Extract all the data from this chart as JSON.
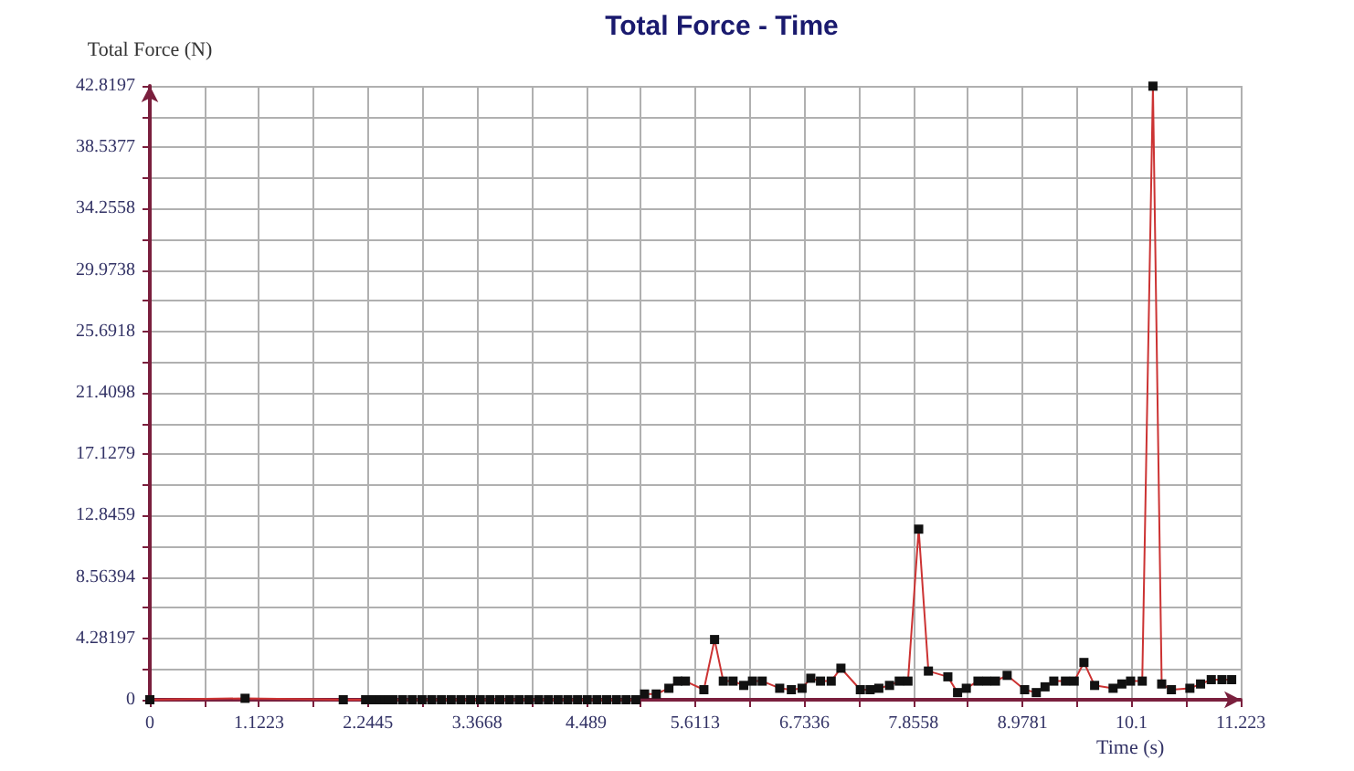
{
  "chart_data": {
    "type": "line",
    "title": "Total Force - Time",
    "xlabel": "Time (s)",
    "ylabel": "Total Force (N)",
    "x": [
      0,
      0.98,
      1.99,
      2.22,
      2.27,
      2.32,
      2.37,
      2.42,
      2.46,
      2.5,
      2.6,
      2.7,
      2.8,
      2.9,
      3.0,
      3.1,
      3.2,
      3.3,
      3.4,
      3.5,
      3.6,
      3.7,
      3.8,
      3.9,
      4.0,
      4.1,
      4.2,
      4.3,
      4.4,
      4.5,
      4.6,
      4.7,
      4.8,
      4.9,
      5.0,
      5.09,
      5.21,
      5.34,
      5.43,
      5.51,
      5.7,
      5.81,
      5.9,
      6.0,
      6.11,
      6.2,
      6.3,
      6.48,
      6.6,
      6.71,
      6.8,
      6.9,
      7.01,
      7.11,
      7.31,
      7.41,
      7.5,
      7.61,
      7.71,
      7.8,
      7.91,
      8.01,
      8.21,
      8.31,
      8.4,
      8.52,
      8.61,
      8.7,
      8.82,
      9.0,
      9.12,
      9.21,
      9.3,
      9.42,
      9.51,
      9.61,
      9.72,
      9.91,
      10.0,
      10.09,
      10.21,
      10.32,
      10.41,
      10.51,
      10.7,
      10.81,
      10.92,
      11.03,
      11.13
    ],
    "series": [
      {
        "color": "#cc3333",
        "values": [
          0,
          0.1,
          0,
          0,
          0,
          0,
          0,
          0,
          0,
          0,
          0,
          0,
          0,
          0,
          0,
          0,
          0,
          0,
          0,
          0,
          0,
          0,
          0,
          0,
          0,
          0,
          0,
          0,
          0,
          0,
          0,
          0,
          0,
          0,
          0,
          0.4,
          0.4,
          0.8,
          1.3,
          1.3,
          0.7,
          4.2,
          1.3,
          1.3,
          1.0,
          1.3,
          1.3,
          0.8,
          0.7,
          0.8,
          1.5,
          1.3,
          1.3,
          2.2,
          0.7,
          0.7,
          0.8,
          1.0,
          1.3,
          1.3,
          11.9,
          2.0,
          1.6,
          0.5,
          0.8,
          1.3,
          1.3,
          1.3,
          1.7,
          0.7,
          0.5,
          0.9,
          1.3,
          1.3,
          1.3,
          2.6,
          1.0,
          0.8,
          1.1,
          1.3,
          1.3,
          42.8,
          1.1,
          0.7,
          0.8,
          1.1,
          1.4,
          1.4,
          1.4
        ]
      }
    ],
    "xlim": [
      0,
      11.223
    ],
    "xticks": [
      0,
      {
        "value": 0.56115,
        "label": null
      },
      1.1223,
      {
        "value": 1.6834,
        "label": null
      },
      2.2445,
      {
        "value": 2.80565,
        "label": null
      },
      3.3668,
      {
        "value": 3.9279,
        "label": null
      },
      4.489,
      {
        "value": 5.05015,
        "label": null
      },
      5.6113,
      {
        "value": 6.17245,
        "label": null
      },
      6.7336,
      {
        "value": 7.2947,
        "label": null
      },
      7.8558,
      {
        "value": 8.41695,
        "label": null
      },
      8.9781,
      {
        "value": 9.53905,
        "label": null
      },
      10.1,
      {
        "value": 10.6615,
        "label": null
      },
      11.223
    ],
    "ylim": [
      0,
      42.8197
    ],
    "yticks": [
      0,
      {
        "value": 2.14099,
        "label": null
      },
      4.28197,
      {
        "value": 6.42296,
        "label": null
      },
      8.56394,
      {
        "value": 10.7049,
        "label": null
      },
      12.8459,
      {
        "value": 14.9869,
        "label": null
      },
      17.1279,
      {
        "value": 19.2689,
        "label": null
      },
      21.4098,
      {
        "value": 23.5508,
        "label": null
      },
      25.6918,
      {
        "value": 27.8328,
        "label": null
      },
      29.9738,
      {
        "value": 32.1148,
        "label": null
      },
      34.2558,
      {
        "value": 36.3967,
        "label": null
      },
      38.5377,
      {
        "value": 40.6787,
        "label": null
      },
      42.8197
    ],
    "grid": true,
    "marker": "square",
    "line_style": "solid"
  }
}
